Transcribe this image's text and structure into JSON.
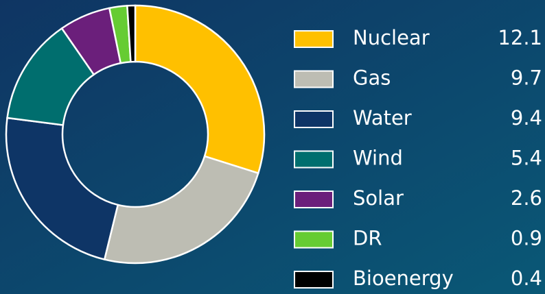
{
  "chart_data": {
    "type": "donut",
    "categories": [
      "Nuclear",
      "Gas",
      "Water",
      "Wind",
      "Solar",
      "DR",
      "Bioenergy"
    ],
    "values": [
      12.1,
      9.7,
      9.4,
      5.4,
      2.6,
      0.9,
      0.4
    ],
    "colors": [
      "#ffc000",
      "#bdbdb3",
      "#0e3566",
      "#006e6e",
      "#6b1f7b",
      "#66cc33",
      "#000000"
    ]
  }
}
